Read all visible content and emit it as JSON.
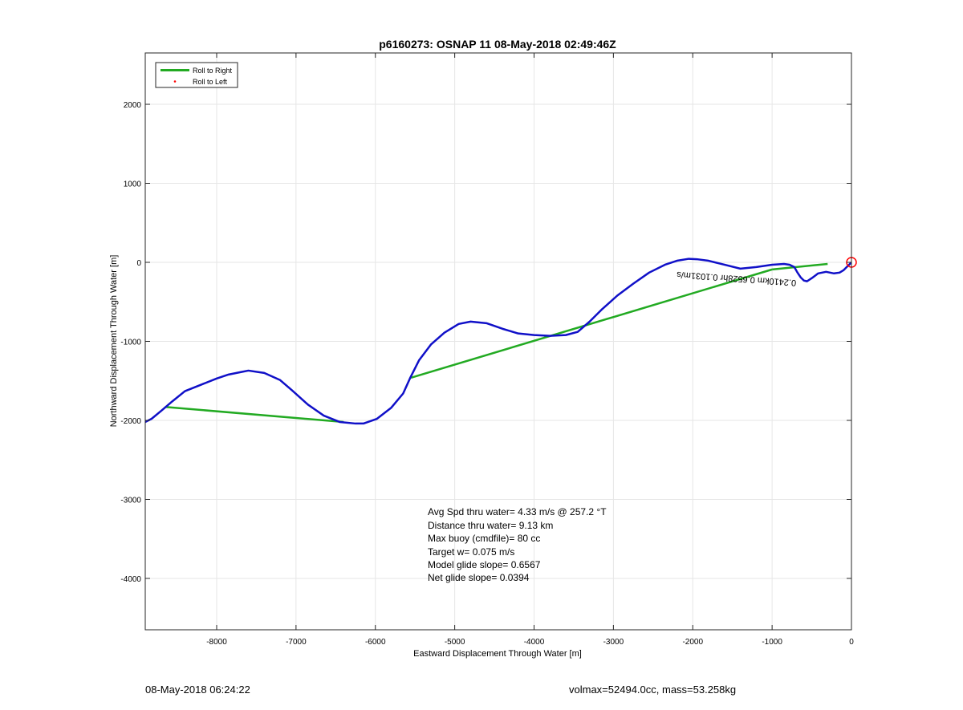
{
  "chart_data": {
    "type": "line",
    "title": "p6160273: OSNAP 11 08-May-2018 02:49:46Z",
    "xlabel": "Eastward Displacement Through Water [m]",
    "ylabel": "Northward Displacement Through Water [m]",
    "xlim": [
      -8900,
      0
    ],
    "ylim": [
      -4650,
      2650
    ],
    "xticks": [
      -8000,
      -7000,
      -6000,
      -5000,
      -4000,
      -3000,
      -2000,
      -1000,
      0
    ],
    "yticks": [
      -4000,
      -3000,
      -2000,
      -1000,
      0,
      1000,
      2000
    ],
    "grid": true,
    "legend": {
      "placement": "top-left",
      "entries": [
        {
          "label": "Roll to Right",
          "color": "#22aa22",
          "marker": "line"
        },
        {
          "label": "Roll to Left",
          "color": "#ff0000",
          "marker": "dot"
        }
      ]
    },
    "series": [
      {
        "color": "#1010c8",
        "x": [
          -8900,
          -8820,
          -8700,
          -8560,
          -8400,
          -8200,
          -8000,
          -7850,
          -7700,
          -7600,
          -7400,
          -7200,
          -7050,
          -6850,
          -6650,
          -6450,
          -6250,
          -6150,
          -5980,
          -5800,
          -5650,
          -5560,
          -5450,
          -5300,
          -5130,
          -4950,
          -4800,
          -4600,
          -4400,
          -4200,
          -4000,
          -3800,
          -3600,
          -3450,
          -3300,
          -3150,
          -2950,
          -2750,
          -2550,
          -2350,
          -2200,
          -2050,
          -1950,
          -1800,
          -1600,
          -1400,
          -1200,
          -1000,
          -850,
          -780,
          -720,
          -680,
          -640,
          -600,
          -560,
          -500,
          -420,
          -320,
          -220,
          -150,
          -100,
          -60,
          -30,
          -10,
          0
        ],
        "y": [
          -2020,
          -1980,
          -1880,
          -1760,
          -1630,
          -1550,
          -1470,
          -1420,
          -1390,
          -1370,
          -1400,
          -1490,
          -1620,
          -1800,
          -1940,
          -2020,
          -2040,
          -2040,
          -1980,
          -1840,
          -1660,
          -1460,
          -1240,
          -1040,
          -890,
          -780,
          -750,
          -770,
          -840,
          -900,
          -920,
          -930,
          -920,
          -880,
          -750,
          -600,
          -420,
          -270,
          -130,
          -30,
          20,
          45,
          40,
          20,
          -30,
          -80,
          -60,
          -30,
          -20,
          -30,
          -60,
          -130,
          -190,
          -230,
          -240,
          -200,
          -140,
          -120,
          -140,
          -130,
          -100,
          -60,
          -30,
          -10,
          0
        ]
      },
      {
        "color": "#22aa22",
        "segments": [
          {
            "x": [
              -8650,
              -6400
            ],
            "y": [
              -1830,
              -2020
            ]
          },
          {
            "x": [
              -5550,
              -1000
            ],
            "y": [
              -1460,
              -90
            ]
          },
          {
            "x": [
              -1000,
              -300
            ],
            "y": [
              -90,
              -20
            ]
          }
        ]
      }
    ],
    "end_marker": {
      "x": 0,
      "y": 0,
      "color": "#ff0000"
    },
    "track_annotation": {
      "text": "0.2410km 0.6528hr 0.1031m/s",
      "x": -2200,
      "y": -120
    },
    "stats": [
      "Avg Spd thru water=  4.33 m/s @ 257.2 °T",
      "Distance thru water=  9.13 km",
      "Max buoy (cmdfile)= 80 cc",
      "Target w= 0.075 m/s",
      "Model glide slope= 0.6567",
      "Net glide slope= 0.0394"
    ]
  },
  "footer": {
    "left": "08-May-2018 06:24:22",
    "right": "volmax=52494.0cc, mass=53.258kg"
  }
}
